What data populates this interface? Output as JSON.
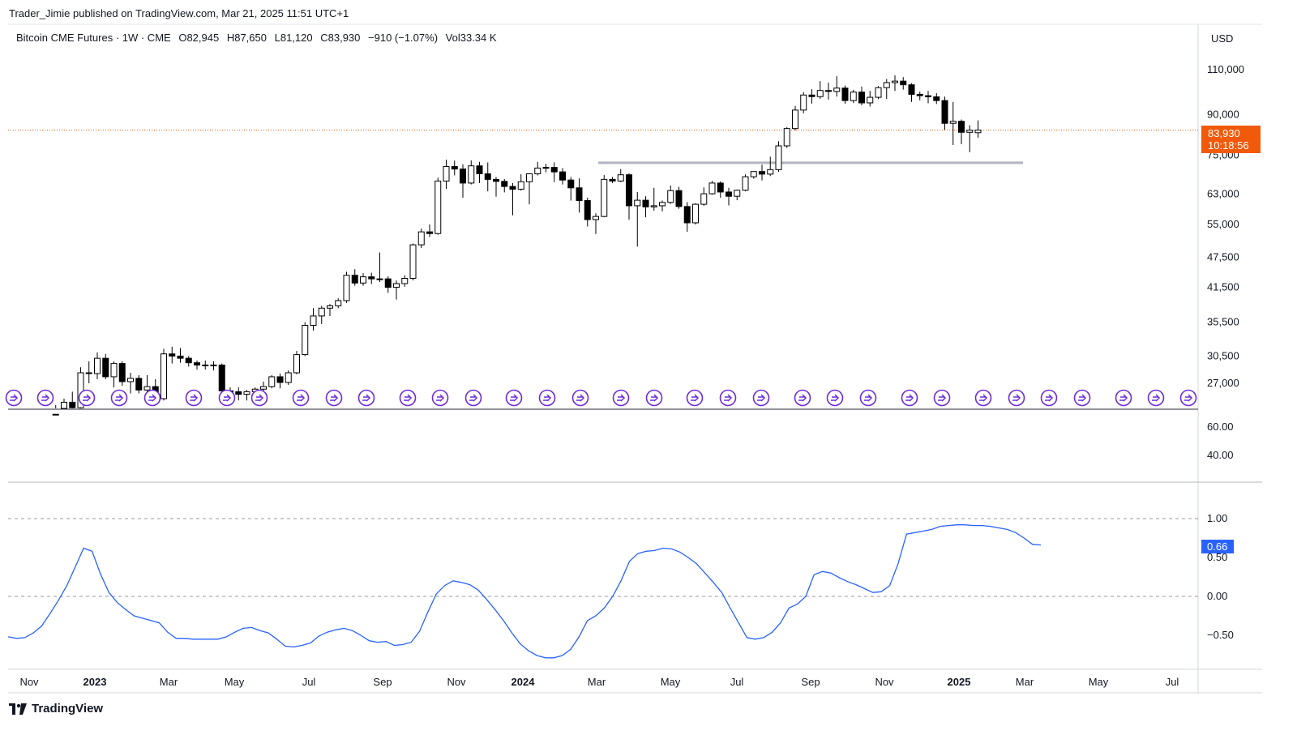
{
  "publisher_line": "Trader_Jimie published on TradingView.com, Mar 21, 2025 11:51 UTC+1",
  "symbol": {
    "name": "Bitcoin CME Futures · 1W · CME",
    "open": "O82,945",
    "high": "H87,650",
    "low": "L81,120",
    "close": "C83,930",
    "change": "−910 (−1.07%)",
    "volume": "Vol33.34 K"
  },
  "currency": "USD",
  "last_price": {
    "price": "83,930",
    "countdown": "10:18:56",
    "color": "#f05a0a"
  },
  "oscillator_value": {
    "label": "0.66",
    "color": "#2962ff"
  },
  "footer": {
    "brand": "TradingView"
  },
  "chart_data": [
    {
      "type": "candlestick",
      "scale": "log",
      "y_ticks": [
        110000,
        90000,
        75000,
        63000,
        55000,
        47500,
        41500,
        35500,
        30500,
        27000
      ],
      "y_tick_labels": [
        "110,000",
        "90,000",
        "75,000",
        "63,000",
        "55,000",
        "47,500",
        "41,500",
        "35,500",
        "30,500",
        "27,000"
      ],
      "x_labels": [
        "Nov",
        "2023",
        "Mar",
        "May",
        "Jul",
        "Sep",
        "Nov",
        "2024",
        "Mar",
        "May",
        "Jul",
        "Sep",
        "Nov",
        "2025",
        "Mar",
        "May",
        "Jul"
      ],
      "bold_x_labels": [
        "2023",
        "2024",
        "2025"
      ],
      "horizontal_level": 72500,
      "candles": [
        [
          18100,
          19500,
          17500,
          19000
        ],
        [
          19000,
          21500,
          18800,
          21000
        ],
        [
          21000,
          23800,
          20800,
          23500
        ],
        [
          23500,
          24500,
          22000,
          22500
        ],
        [
          22500,
          25200,
          22300,
          24800
        ],
        [
          24800,
          26000,
          23800,
          24200
        ],
        [
          24200,
          29000,
          24000,
          28300
        ],
        [
          28300,
          29800,
          27000,
          28200
        ],
        [
          28200,
          31000,
          27500,
          30200
        ],
        [
          30200,
          30800,
          27500,
          27800
        ],
        [
          27800,
          29800,
          26500,
          29500
        ],
        [
          29500,
          29800,
          26700,
          27200
        ],
        [
          27200,
          28300,
          25800,
          27600
        ],
        [
          27600,
          28000,
          25800,
          26200
        ],
        [
          26200,
          28000,
          25300,
          26600
        ],
        [
          26600,
          27500,
          24700,
          25200
        ],
        [
          25200,
          31500,
          25000,
          30800
        ],
        [
          30800,
          31800,
          29500,
          30500
        ],
        [
          30500,
          31600,
          29600,
          30200
        ],
        [
          30200,
          30500,
          29100,
          29600
        ],
        [
          29600,
          29900,
          28700,
          29300
        ],
        [
          29300,
          29900,
          28700,
          29200
        ],
        [
          29200,
          29800,
          28600,
          29300
        ],
        [
          29300,
          29500,
          25600,
          26100
        ],
        [
          26100,
          26500,
          25100,
          26000
        ],
        [
          26000,
          26500,
          25000,
          25700
        ],
        [
          25700,
          26200,
          25000,
          26000
        ],
        [
          26000,
          26500,
          25000,
          26300
        ],
        [
          26300,
          27200,
          25800,
          26600
        ],
        [
          26600,
          28000,
          26400,
          27800
        ],
        [
          27800,
          28200,
          26400,
          27100
        ],
        [
          27100,
          28600,
          26800,
          28300
        ],
        [
          28300,
          31200,
          28100,
          30700
        ],
        [
          30700,
          35500,
          30500,
          35000
        ],
        [
          35000,
          37800,
          34200,
          36500
        ],
        [
          36500,
          38200,
          35200,
          37800
        ],
        [
          37800,
          38500,
          36500,
          38200
        ],
        [
          38200,
          39500,
          37800,
          39100
        ],
        [
          39100,
          44500,
          38700,
          43800
        ],
        [
          43800,
          45000,
          41800,
          42300
        ],
        [
          42300,
          44200,
          41800,
          43500
        ],
        [
          43500,
          44300,
          42100,
          43100
        ],
        [
          43100,
          48500,
          42500,
          43100
        ],
        [
          43100,
          43600,
          40500,
          41500
        ],
        [
          41500,
          42800,
          39300,
          42200
        ],
        [
          42200,
          43800,
          41600,
          43200
        ],
        [
          43200,
          50500,
          42800,
          50200
        ],
        [
          50200,
          54000,
          49500,
          53200
        ],
        [
          53200,
          55000,
          52000,
          52800
        ],
        [
          52800,
          67800,
          52500,
          66800
        ],
        [
          66800,
          73500,
          64500,
          71300
        ],
        [
          71300,
          73200,
          68500,
          70500
        ],
        [
          70500,
          72000,
          62000,
          66200
        ],
        [
          66200,
          73300,
          65800,
          71500
        ],
        [
          71500,
          72800,
          66200,
          69000
        ],
        [
          69000,
          72600,
          63800,
          67300
        ],
        [
          67300,
          68000,
          62300,
          66700
        ],
        [
          66700,
          67400,
          63500,
          65200
        ],
        [
          65200,
          66200,
          57300,
          64400
        ],
        [
          64400,
          68900,
          64000,
          66600
        ],
        [
          66600,
          69000,
          60200,
          69000
        ],
        [
          69000,
          72800,
          68500,
          70800
        ],
        [
          70800,
          72200,
          69500,
          71000
        ],
        [
          71000,
          72600,
          66500,
          69600
        ],
        [
          69600,
          70800,
          65800,
          67100
        ],
        [
          67100,
          68000,
          61200,
          64800
        ],
        [
          64800,
          67600,
          58000,
          61200
        ],
        [
          61200,
          62000,
          54500,
          56200
        ],
        [
          56200,
          57800,
          52700,
          57000
        ],
        [
          57000,
          68600,
          56800,
          67300
        ],
        [
          67300,
          68000,
          66200,
          66800
        ],
        [
          66800,
          70500,
          66500,
          68700
        ],
        [
          68700,
          69200,
          56200,
          59800
        ],
        [
          59800,
          63600,
          49800,
          61300
        ],
        [
          61300,
          62400,
          56800,
          59500
        ],
        [
          59500,
          64800,
          58500,
          59800
        ],
        [
          59800,
          61200,
          58300,
          60700
        ],
        [
          60700,
          65500,
          60300,
          64000
        ],
        [
          64000,
          65100,
          59000,
          59600
        ],
        [
          59600,
          60800,
          53200,
          55400
        ],
        [
          55400,
          60500,
          55000,
          60200
        ],
        [
          60200,
          64900,
          59800,
          63100
        ],
        [
          63100,
          66800,
          62800,
          66200
        ],
        [
          66200,
          66700,
          62000,
          63600
        ],
        [
          63600,
          64800,
          59900,
          62400
        ],
        [
          62400,
          64300,
          61300,
          64100
        ],
        [
          64100,
          68800,
          63800,
          68100
        ],
        [
          68100,
          69600,
          67500,
          69700
        ],
        [
          69700,
          71900,
          67000,
          68900
        ],
        [
          68900,
          74500,
          68300,
          70300
        ],
        [
          70300,
          79800,
          69600,
          78200
        ],
        [
          78200,
          85000,
          77500,
          84500
        ],
        [
          84500,
          93500,
          83800,
          91800
        ],
        [
          91800,
          99500,
          90500,
          98200
        ],
        [
          98200,
          100800,
          94500,
          97500
        ],
        [
          97500,
          104500,
          96500,
          100200
        ],
        [
          100200,
          103800,
          96200,
          99800
        ],
        [
          99800,
          106800,
          97500,
          101300
        ],
        [
          101300,
          102500,
          94500,
          95800
        ],
        [
          95800,
          100500,
          94800,
          99500
        ],
        [
          99500,
          102000,
          93800,
          94800
        ],
        [
          94800,
          100000,
          93300,
          97200
        ],
        [
          97200,
          102200,
          96400,
          101500
        ],
        [
          101500,
          105500,
          96500,
          103800
        ],
        [
          103800,
          107300,
          100000,
          104500
        ],
        [
          104500,
          106400,
          100600,
          102800
        ],
        [
          102800,
          103500,
          95200,
          98500
        ],
        [
          98500,
          99700,
          95900,
          97900
        ],
        [
          97900,
          100000,
          94600,
          97400
        ],
        [
          97400,
          99000,
          94300,
          95800
        ],
        [
          95800,
          97500,
          84000,
          86500
        ],
        [
          86500,
          95200,
          78500,
          87300
        ],
        [
          87300,
          88000,
          78800,
          83100
        ],
        [
          83100,
          85800,
          76000,
          83900
        ],
        [
          82945,
          87650,
          81120,
          83930
        ]
      ],
      "events_label": "dividends/events markers"
    },
    {
      "type": "line",
      "series": [
        {
          "values": [
            -0.52,
            -0.54,
            -0.53,
            -0.47,
            -0.38,
            -0.22,
            -0.05,
            0.14,
            0.38,
            0.62,
            0.58,
            0.29,
            0.05,
            -0.08,
            -0.17,
            -0.25,
            -0.28,
            -0.31,
            -0.34,
            -0.46,
            -0.54,
            -0.54,
            -0.55,
            -0.55,
            -0.55,
            -0.55,
            -0.52,
            -0.46,
            -0.41,
            -0.4,
            -0.44,
            -0.47,
            -0.55,
            -0.64,
            -0.65,
            -0.63,
            -0.6,
            -0.51,
            -0.46,
            -0.43,
            -0.41,
            -0.44,
            -0.5,
            -0.57,
            -0.59,
            -0.58,
            -0.63,
            -0.62,
            -0.59,
            -0.45,
            -0.2,
            0.03,
            0.14,
            0.2,
            0.18,
            0.15,
            0.08,
            -0.04,
            -0.17,
            -0.31,
            -0.47,
            -0.61,
            -0.7,
            -0.76,
            -0.79,
            -0.79,
            -0.76,
            -0.68,
            -0.52,
            -0.31,
            -0.25,
            -0.15,
            0.0,
            0.2,
            0.45,
            0.55,
            0.58,
            0.59,
            0.62,
            0.61,
            0.57,
            0.5,
            0.42,
            0.3,
            0.18,
            0.05,
            -0.15,
            -0.34,
            -0.53,
            -0.55,
            -0.53,
            -0.46,
            -0.34,
            -0.15,
            -0.1,
            0.0,
            0.28,
            0.32,
            0.3,
            0.24,
            0.19,
            0.15,
            0.1,
            0.05,
            0.06,
            0.14,
            0.42,
            0.8,
            0.82,
            0.84,
            0.86,
            0.9,
            0.91,
            0.92,
            0.92,
            0.91,
            0.91,
            0.9,
            0.88,
            0.86,
            0.82,
            0.75,
            0.67,
            0.66
          ]
        }
      ],
      "y_ticks": [
        1.0,
        0.5,
        0.0,
        -0.5
      ],
      "y_tick_labels": [
        "1.00",
        "0.50",
        "0.00",
        "−0.50"
      ],
      "dashed_levels": [
        1.0,
        0.0
      ],
      "color": "#2962ff"
    },
    {
      "type": "line",
      "note": "empty middle pane scale",
      "y_tick_labels": [
        "60.00",
        "40.00"
      ]
    }
  ]
}
